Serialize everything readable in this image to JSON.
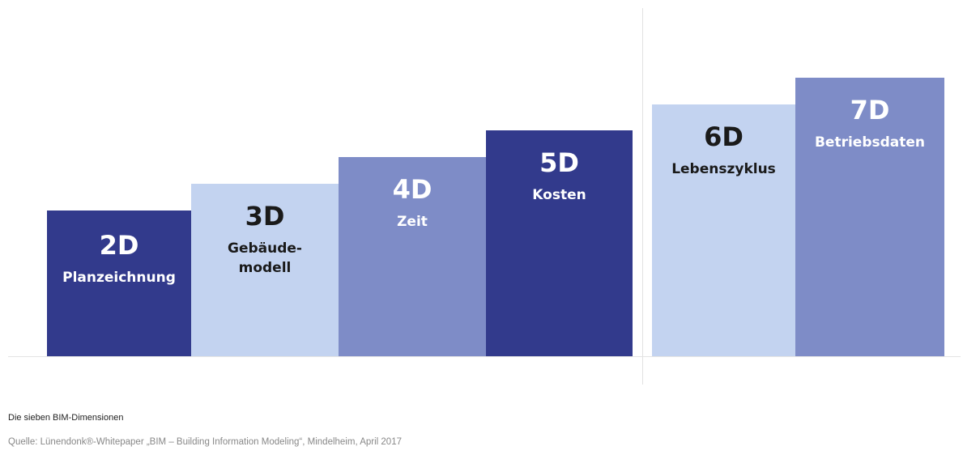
{
  "colors": {
    "dark": "#323a8c",
    "medium": "#7e8cc7",
    "light": "#c3d3f0",
    "text_on_dark": "#ffffff",
    "text_on_light": "#1a1a1a"
  },
  "steps": [
    {
      "code": "2D",
      "label": "Planzeichnung",
      "tone": "dark",
      "level": 1
    },
    {
      "code": "3D",
      "label": "Gebäude-\nmodell",
      "tone": "light",
      "level": 2
    },
    {
      "code": "4D",
      "label": "Zeit",
      "tone": "medium",
      "level": 3
    },
    {
      "code": "5D",
      "label": "Kosten",
      "tone": "dark",
      "level": 4
    },
    {
      "code": "6D",
      "label": "Lebenszyklus",
      "tone": "light",
      "level": 5
    },
    {
      "code": "7D",
      "label": "Betriebsdaten",
      "tone": "medium",
      "level": 6
    }
  ],
  "caption": "Die sieben BIM-Dimensionen",
  "source": "Quelle: Lünendonk®-Whitepaper „BIM – Building Information Modeling“, Mindelheim, April 2017"
}
